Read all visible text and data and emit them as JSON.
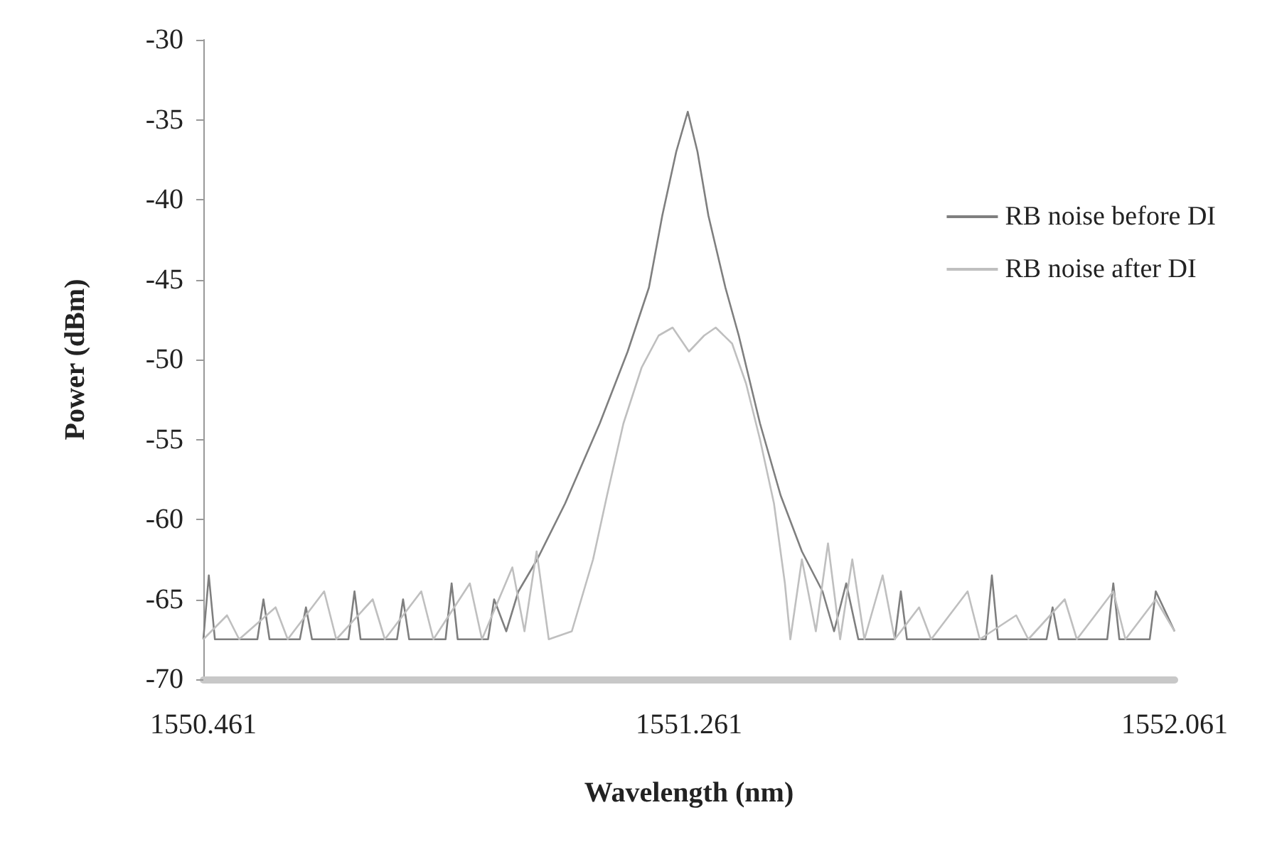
{
  "chart_data": {
    "type": "line",
    "xlabel": "Wavelength (nm)",
    "ylabel": "Power (dBm)",
    "xlim": [
      1550.461,
      1552.061
    ],
    "xticks": [
      1550.461,
      1551.261,
      1552.061
    ],
    "ylim": [
      -70,
      -30
    ],
    "yticks": [
      -70,
      -65,
      -60,
      -55,
      -50,
      -45,
      -40,
      -35,
      -30
    ],
    "grid": false,
    "legend": "top right",
    "marker": "none",
    "line_style": "solid",
    "series": [
      {
        "name": "RB noise before DI",
        "color": "#7f7f7f",
        "x": [
          1550.461,
          1550.47,
          1550.48,
          1550.55,
          1550.56,
          1550.57,
          1550.62,
          1550.63,
          1550.64,
          1550.7,
          1550.71,
          1550.72,
          1550.78,
          1550.79,
          1550.8,
          1550.86,
          1550.87,
          1550.88,
          1550.93,
          1550.94,
          1550.96,
          1550.98,
          1551.011,
          1551.057,
          1551.114,
          1551.16,
          1551.195,
          1551.217,
          1551.24,
          1551.259,
          1551.275,
          1551.293,
          1551.321,
          1551.343,
          1551.378,
          1551.412,
          1551.447,
          1551.481,
          1551.5,
          1551.52,
          1551.54,
          1551.6,
          1551.61,
          1551.62,
          1551.75,
          1551.76,
          1551.77,
          1551.85,
          1551.86,
          1551.87,
          1551.95,
          1551.96,
          1551.97,
          1552.02,
          1552.03,
          1552.061
        ],
        "values": [
          -67.5,
          -63.5,
          -67.5,
          -67.5,
          -65,
          -67.5,
          -67.5,
          -65.5,
          -67.5,
          -67.5,
          -64.5,
          -67.5,
          -67.5,
          -65,
          -67.5,
          -67.5,
          -64,
          -67.5,
          -67.5,
          -65,
          -67,
          -64.5,
          -62.5,
          -59,
          -54,
          -49.5,
          -45.5,
          -41,
          -37,
          -34.5,
          -37,
          -41,
          -45.5,
          -48.5,
          -54,
          -58.5,
          -62,
          -64.5,
          -67,
          -64,
          -67.5,
          -67.5,
          -64.5,
          -67.5,
          -67.5,
          -63.5,
          -67.5,
          -67.5,
          -65.5,
          -67.5,
          -67.5,
          -64,
          -67.5,
          -67.5,
          -64.5,
          -67
        ]
      },
      {
        "name": "RB noise after DI",
        "color": "#bfbfbf",
        "x": [
          1550.461,
          1550.5,
          1550.52,
          1550.58,
          1550.6,
          1550.66,
          1550.68,
          1550.74,
          1550.76,
          1550.82,
          1550.84,
          1550.9,
          1550.92,
          1550.97,
          1550.99,
          1551.01,
          1551.03,
          1551.068,
          1551.103,
          1551.126,
          1551.153,
          1551.183,
          1551.211,
          1551.234,
          1551.261,
          1551.286,
          1551.305,
          1551.332,
          1551.355,
          1551.378,
          1551.401,
          1551.419,
          1551.428,
          1551.447,
          1551.47,
          1551.49,
          1551.51,
          1551.53,
          1551.55,
          1551.58,
          1551.6,
          1551.64,
          1551.66,
          1551.72,
          1551.74,
          1551.8,
          1551.82,
          1551.88,
          1551.9,
          1551.96,
          1551.98,
          1552.03,
          1552.061
        ],
        "values": [
          -67.5,
          -66,
          -67.5,
          -65.5,
          -67.5,
          -64.5,
          -67.5,
          -65,
          -67.5,
          -64.5,
          -67.5,
          -64,
          -67.5,
          -63,
          -67,
          -62,
          -67.5,
          -67,
          -62.5,
          -58.5,
          -54,
          -50.5,
          -48.5,
          -48,
          -49.5,
          -48.5,
          -48,
          -49,
          -51.5,
          -55,
          -59,
          -64,
          -67.5,
          -62.5,
          -67,
          -61.5,
          -67.5,
          -62.5,
          -67.5,
          -63.5,
          -67.5,
          -65.5,
          -67.5,
          -64.5,
          -67.5,
          -66,
          -67.5,
          -65,
          -67.5,
          -64.5,
          -67.5,
          -65,
          -67
        ]
      }
    ]
  }
}
